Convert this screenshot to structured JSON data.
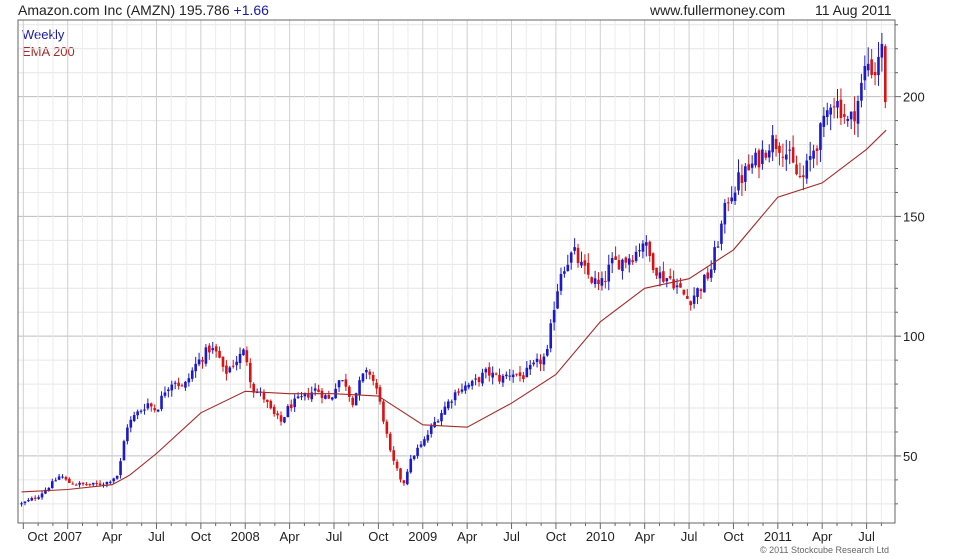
{
  "header": {
    "title": "Amazon.com Inc (AMZN) 195.786",
    "change": "+1.66",
    "site": "www.fullermoney.com",
    "date": "11 Aug 2011"
  },
  "copyright": "© 2011 Stockcube Research Ltd",
  "colors": {
    "up": "#1a1acc",
    "down": "#dd1111",
    "ema": "#a52a2a",
    "grid": "#d8d8d8",
    "frame": "#666666"
  },
  "chart_data": {
    "type": "candlestick",
    "legend": [
      "Weekly",
      "EMA 200"
    ],
    "legend_position": "top-left",
    "grid": true,
    "y_axis_side": "right",
    "ylim": [
      22,
      232
    ],
    "xlim": [
      2006.72,
      2011.66
    ],
    "yticks": [
      50,
      100,
      150,
      200
    ],
    "xticks": [
      {
        "label": "Oct",
        "t": 2006.83
      },
      {
        "label": "2007",
        "t": 2007.0
      },
      {
        "label": "Apr",
        "t": 2007.25
      },
      {
        "label": "Jul",
        "t": 2007.5
      },
      {
        "label": "Oct",
        "t": 2007.75
      },
      {
        "label": "2008",
        "t": 2008.0
      },
      {
        "label": "Apr",
        "t": 2008.25
      },
      {
        "label": "Jul",
        "t": 2008.5
      },
      {
        "label": "Oct",
        "t": 2008.75
      },
      {
        "label": "2009",
        "t": 2009.0
      },
      {
        "label": "Apr",
        "t": 2009.25
      },
      {
        "label": "Jul",
        "t": 2009.5
      },
      {
        "label": "Oct",
        "t": 2009.75
      },
      {
        "label": "2010",
        "t": 2010.0
      },
      {
        "label": "Apr",
        "t": 2010.25
      },
      {
        "label": "Jul",
        "t": 2010.5
      },
      {
        "label": "Oct",
        "t": 2010.75
      },
      {
        "label": "2011",
        "t": 2011.0
      },
      {
        "label": "Apr",
        "t": 2011.25
      },
      {
        "label": "Jul",
        "t": 2011.5
      }
    ],
    "close_path": [
      [
        2006.74,
        30
      ],
      [
        2006.83,
        33
      ],
      [
        2006.92,
        39
      ],
      [
        2006.96,
        42
      ],
      [
        2007.0,
        39
      ],
      [
        2007.08,
        38
      ],
      [
        2007.17,
        38
      ],
      [
        2007.22,
        39
      ],
      [
        2007.28,
        42
      ],
      [
        2007.3,
        48
      ],
      [
        2007.33,
        62
      ],
      [
        2007.38,
        67
      ],
      [
        2007.45,
        72
      ],
      [
        2007.5,
        69
      ],
      [
        2007.55,
        78
      ],
      [
        2007.6,
        82
      ],
      [
        2007.65,
        78
      ],
      [
        2007.72,
        88
      ],
      [
        2007.8,
        95
      ],
      [
        2007.85,
        92
      ],
      [
        2007.88,
        84
      ],
      [
        2007.95,
        90
      ],
      [
        2008.0,
        94
      ],
      [
        2008.04,
        78
      ],
      [
        2008.1,
        75
      ],
      [
        2008.15,
        68
      ],
      [
        2008.2,
        64
      ],
      [
        2008.25,
        71
      ],
      [
        2008.32,
        74
      ],
      [
        2008.4,
        78
      ],
      [
        2008.48,
        73
      ],
      [
        2008.52,
        82
      ],
      [
        2008.57,
        80
      ],
      [
        2008.6,
        72
      ],
      [
        2008.66,
        83
      ],
      [
        2008.7,
        85
      ],
      [
        2008.74,
        78
      ],
      [
        2008.78,
        65
      ],
      [
        2008.82,
        50
      ],
      [
        2008.86,
        43
      ],
      [
        2008.89,
        38
      ],
      [
        2008.92,
        46
      ],
      [
        2008.96,
        52
      ],
      [
        2009.0,
        55
      ],
      [
        2009.05,
        62
      ],
      [
        2009.12,
        70
      ],
      [
        2009.2,
        78
      ],
      [
        2009.28,
        80
      ],
      [
        2009.36,
        85
      ],
      [
        2009.44,
        82
      ],
      [
        2009.5,
        85
      ],
      [
        2009.56,
        83
      ],
      [
        2009.62,
        87
      ],
      [
        2009.7,
        92
      ],
      [
        2009.74,
        113
      ],
      [
        2009.78,
        128
      ],
      [
        2009.85,
        135
      ],
      [
        2009.9,
        128
      ],
      [
        2009.95,
        124
      ],
      [
        2010.0,
        120
      ],
      [
        2010.06,
        130
      ],
      [
        2010.14,
        132
      ],
      [
        2010.2,
        135
      ],
      [
        2010.24,
        140
      ],
      [
        2010.28,
        133
      ],
      [
        2010.34,
        125
      ],
      [
        2010.4,
        124
      ],
      [
        2010.46,
        118
      ],
      [
        2010.5,
        115
      ],
      [
        2010.56,
        120
      ],
      [
        2010.62,
        127
      ],
      [
        2010.68,
        145
      ],
      [
        2010.72,
        158
      ],
      [
        2010.78,
        165
      ],
      [
        2010.84,
        170
      ],
      [
        2010.9,
        175
      ],
      [
        2010.96,
        182
      ],
      [
        2011.02,
        180
      ],
      [
        2011.06,
        175
      ],
      [
        2011.1,
        168
      ],
      [
        2011.14,
        165
      ],
      [
        2011.2,
        178
      ],
      [
        2011.26,
        188
      ],
      [
        2011.3,
        200
      ],
      [
        2011.36,
        195
      ],
      [
        2011.4,
        188
      ],
      [
        2011.46,
        200
      ],
      [
        2011.5,
        215
      ],
      [
        2011.55,
        210
      ],
      [
        2011.58,
        225
      ],
      [
        2011.6,
        205
      ],
      [
        2011.61,
        196
      ]
    ],
    "ema_200": [
      [
        2006.74,
        35
      ],
      [
        2007.0,
        36
      ],
      [
        2007.25,
        38
      ],
      [
        2007.35,
        42
      ],
      [
        2007.5,
        51
      ],
      [
        2007.75,
        68
      ],
      [
        2008.0,
        77
      ],
      [
        2008.25,
        76
      ],
      [
        2008.5,
        76
      ],
      [
        2008.75,
        75
      ],
      [
        2009.0,
        63
      ],
      [
        2009.25,
        62
      ],
      [
        2009.5,
        72
      ],
      [
        2009.75,
        84
      ],
      [
        2010.0,
        106
      ],
      [
        2010.25,
        120
      ],
      [
        2010.5,
        124
      ],
      [
        2010.75,
        136
      ],
      [
        2011.0,
        158
      ],
      [
        2011.25,
        164
      ],
      [
        2011.5,
        178
      ],
      [
        2011.61,
        186
      ]
    ]
  }
}
